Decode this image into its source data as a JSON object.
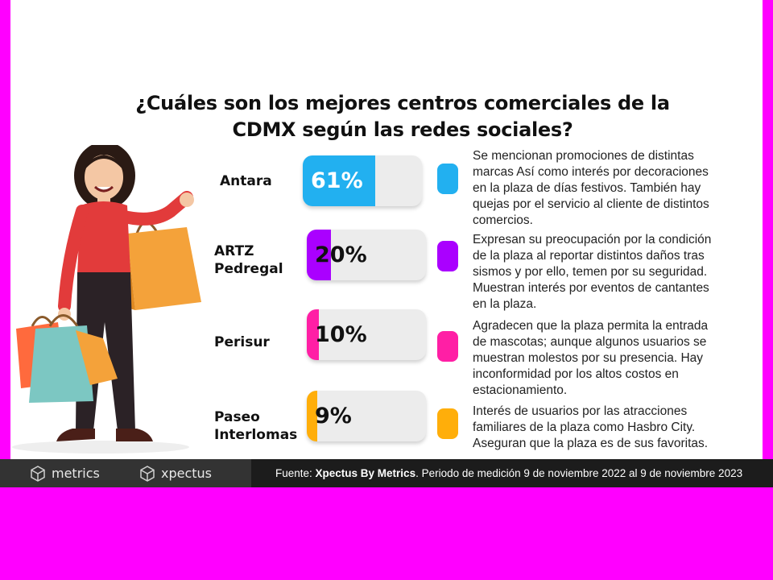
{
  "title_line1": "¿Cuáles son los mejores centros comerciales de la",
  "title_line2": "CDMX según las redes sociales?",
  "colors": {
    "antara": "#22b0f0",
    "artz": "#aa00ff",
    "perisur": "#ff1fa5",
    "paseo": "#ffae0a",
    "page_border": "#ff00ff"
  },
  "chart_data": {
    "type": "bar",
    "categories": [
      "Antara",
      "ARTZ Pedregal",
      "Perisur",
      "Paseo Interlomas"
    ],
    "values": [
      61,
      20,
      10,
      9
    ],
    "value_labels": [
      "61%",
      "20%",
      "10%",
      "9%"
    ],
    "ylim": [
      0,
      100
    ],
    "title": "¿Cuáles son los mejores centros comerciales de la CDMX según las redes sociales?"
  },
  "rows": [
    {
      "label_line1": "Antara",
      "label_line2": "",
      "desc_lines": [
        "Se mencionan promociones de distintas",
        "marcas Así como interés por decoraciones",
        "en la plaza de días festivos. También hay",
        "quejas por el servicio al cliente de distintos",
        "comercios."
      ]
    },
    {
      "label_line1": "ARTZ",
      "label_line2": "Pedregal",
      "desc_lines": [
        "Expresan su preocupación por la condición",
        "de la plaza al reportar distintos daños tras",
        "sismos y por ello, temen por su seguridad.",
        "Muestran interés por eventos de cantantes",
        "en la plaza."
      ]
    },
    {
      "label_line1": "Perisur",
      "label_line2": "",
      "desc_lines": [
        "Agradecen que la plaza permita la entrada",
        "de mascotas; aunque algunos usuarios se",
        "muestran molestos por su presencia. Hay",
        "inconformidad por los altos costos en",
        "estacionamiento."
      ]
    },
    {
      "label_line1": "Paseo",
      "label_line2": "Interlomas",
      "desc_lines": [
        "Interés de usuarios por las atracciones",
        "familiares de la plaza como Hasbro City.",
        "Aseguran que la plaza es de sus favoritas."
      ]
    }
  ],
  "footer": {
    "logo1": "metrics",
    "logo2": "xpectus",
    "source_prefix": "Fuente: ",
    "source_bold": "Xpectus By Metrics",
    "source_rest": ". Periodo de medición 9 de noviembre 2022 al 9 de noviembre 2023"
  }
}
